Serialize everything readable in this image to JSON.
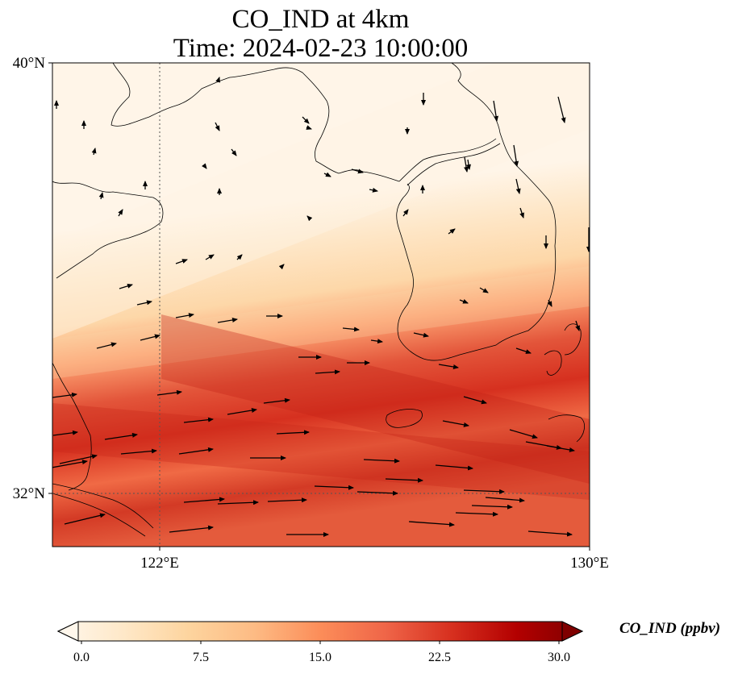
{
  "title": {
    "line1": "CO_IND at 4km",
    "line2": "Time: 2024-02-23 10:00:00"
  },
  "map": {
    "axis_labels": {
      "lat_top": "40°N",
      "lat_bottom": "32°N",
      "lon_left": "122°E",
      "lon_right": "130°E"
    },
    "colormap": "OrRd",
    "vectors": "wind arrows"
  },
  "colorbar": {
    "label": "CO_IND (ppbv)",
    "ticks": [
      "0.0",
      "7.5",
      "15.0",
      "22.5",
      "30.0"
    ],
    "min": 0,
    "max": 30,
    "extend": "both",
    "colors": [
      "#fff7ec",
      "#fee8c8",
      "#fdd49e",
      "#fdbb84",
      "#fc8d59",
      "#ef6548",
      "#d7301f",
      "#b30000",
      "#7f0000"
    ]
  }
}
